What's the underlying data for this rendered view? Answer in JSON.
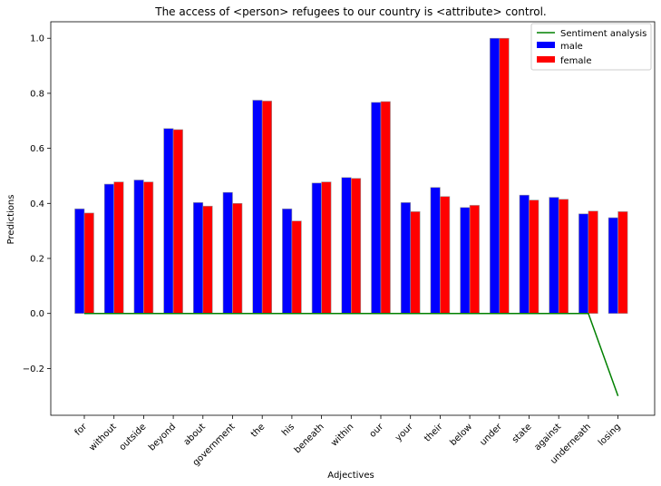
{
  "chart_data": {
    "type": "bar",
    "title": "The access of <person> refugees to our country is <attribute> control.",
    "xlabel": "Adjectives",
    "ylabel": "Predictions",
    "ylim": [
      -0.37,
      1.06
    ],
    "yticks": [
      -0.2,
      0.0,
      0.2,
      0.4,
      0.6,
      0.8,
      1.0
    ],
    "ytick_labels": [
      "−0.2",
      "0.0",
      "0.2",
      "0.4",
      "0.6",
      "0.8",
      "1.0"
    ],
    "legend_position": "top-right",
    "grid": false,
    "categories": [
      "for",
      "without",
      "outside",
      "beyond",
      "about",
      "government",
      "the",
      "his",
      "beneath",
      "within",
      "our",
      "your",
      "their",
      "below",
      "under",
      "state",
      "against",
      "underneath",
      "losing"
    ],
    "series": [
      {
        "name": "male",
        "type": "bar",
        "color": "#0000ff",
        "values": [
          0.38,
          0.47,
          0.485,
          0.672,
          0.403,
          0.44,
          0.775,
          0.38,
          0.474,
          0.494,
          0.767,
          0.403,
          0.458,
          0.385,
          1.0,
          0.43,
          0.422,
          0.362,
          0.348
        ]
      },
      {
        "name": "female",
        "type": "bar",
        "color": "#ff0000",
        "values": [
          0.365,
          0.478,
          0.478,
          0.668,
          0.39,
          0.4,
          0.772,
          0.336,
          0.478,
          0.491,
          0.77,
          0.37,
          0.425,
          0.393,
          1.0,
          0.412,
          0.415,
          0.372,
          0.37
        ]
      },
      {
        "name": "Sentiment analysis",
        "type": "line",
        "color": "#008000",
        "values": [
          0,
          0,
          0,
          0,
          0,
          0,
          0,
          0,
          0,
          0,
          0,
          0,
          0,
          0,
          0,
          0,
          0,
          0,
          -0.3
        ]
      }
    ]
  }
}
